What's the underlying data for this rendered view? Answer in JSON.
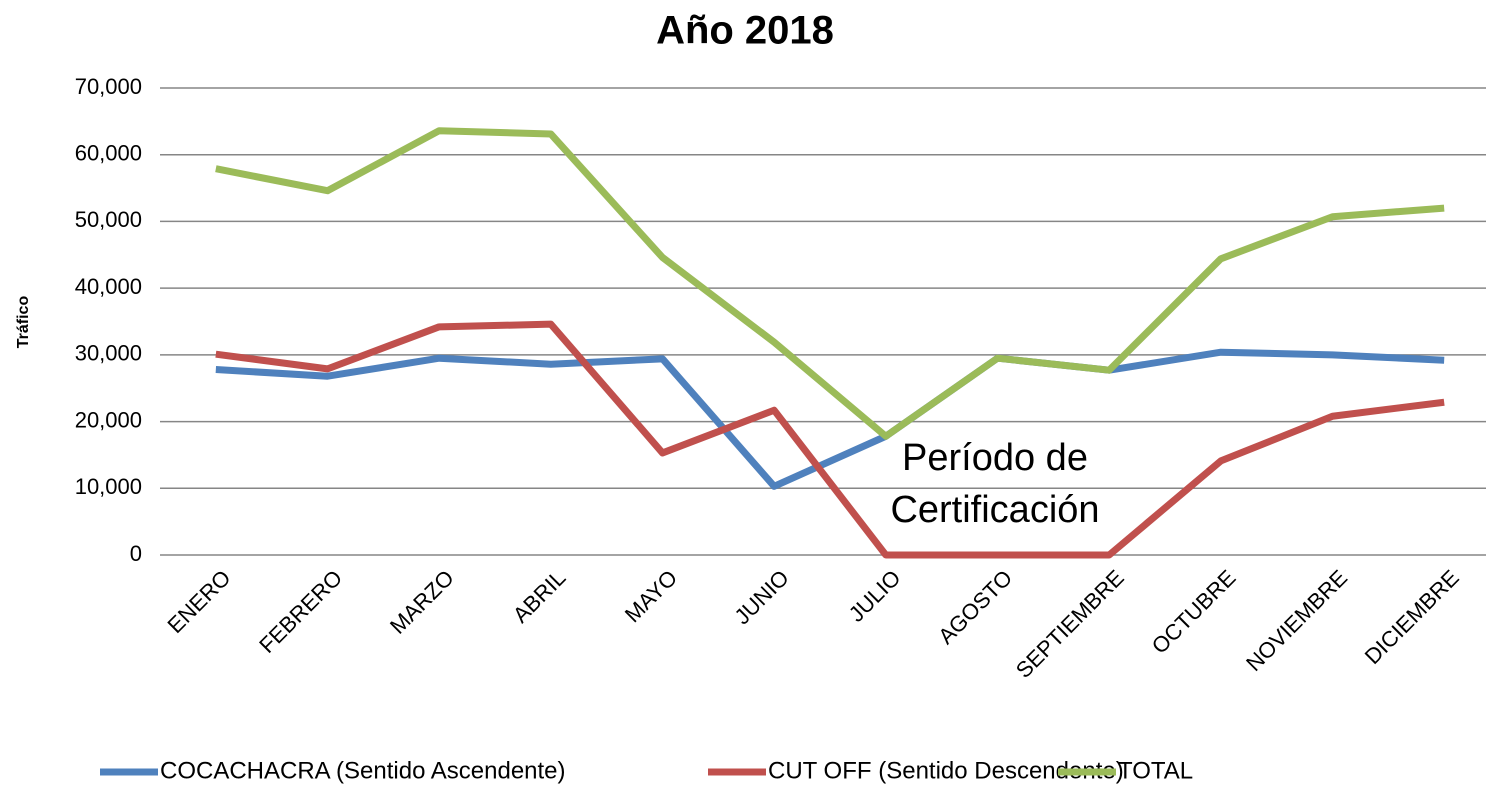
{
  "chart_data": {
    "type": "line",
    "title": "Año 2018",
    "y_label": "Tráfico",
    "categories": [
      "ENERO",
      "FEBRERO",
      "MARZO",
      "ABRIL",
      "MAYO",
      "JUNIO",
      "JULIO",
      "AGOSTO",
      "SEPTIEMBRE",
      "OCTUBRE",
      "NOVIEMBRE",
      "DICIEMBRE"
    ],
    "series": [
      {
        "name": "COCACHACRA (Sentido Ascendente)",
        "color": "#4f81bd",
        "values": [
          27800,
          26800,
          29500,
          28600,
          29400,
          10300,
          17800,
          29500,
          27700,
          30400,
          30000,
          29200
        ]
      },
      {
        "name": "CUT OFF (Sentido Descendente)",
        "color": "#c0504d",
        "values": [
          30100,
          27900,
          34200,
          34600,
          15300,
          21700,
          0,
          0,
          0,
          14100,
          20800,
          22900
        ]
      },
      {
        "name": "TOTAL",
        "color": "#9bbb59",
        "values": [
          57900,
          54600,
          63600,
          63100,
          44600,
          31900,
          17800,
          29500,
          27700,
          44400,
          50700,
          52000
        ]
      }
    ],
    "ylim": [
      0,
      70000
    ],
    "yticks": [
      0,
      {
        "value": 10000,
        "label": "10,000"
      },
      {
        "value": 20000,
        "label": "20,000"
      },
      {
        "value": 30000,
        "label": "30,000"
      },
      {
        "value": 40000,
        "label": "40,000"
      },
      {
        "value": 50000,
        "label": "50,000"
      },
      {
        "value": 60000,
        "label": "60,000"
      },
      {
        "value": 70000,
        "label": "70,000"
      }
    ],
    "grid": true,
    "legend": "bottom",
    "annotation": [
      "Período de",
      "Certificación"
    ]
  }
}
